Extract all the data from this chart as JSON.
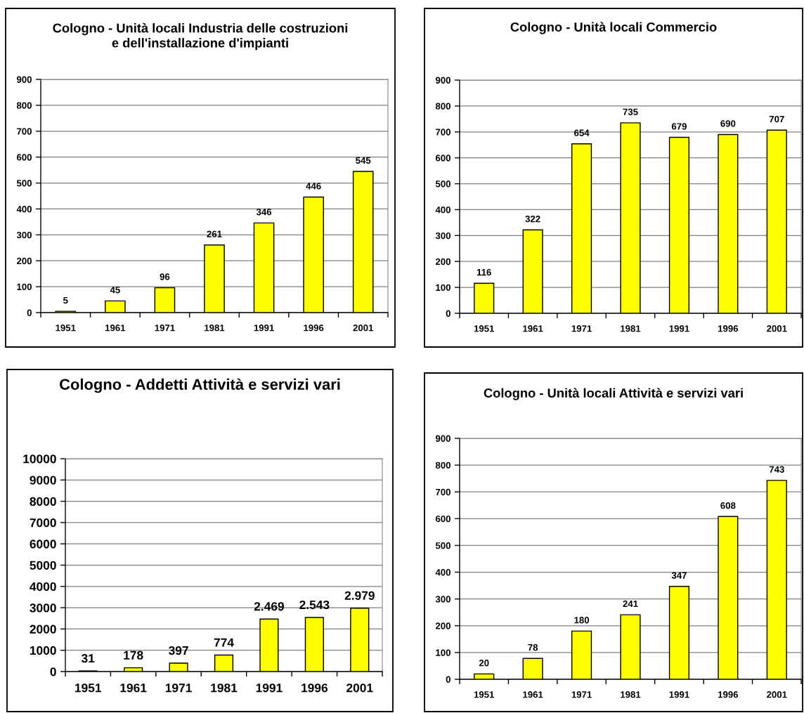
{
  "chart_data": [
    {
      "type": "bar",
      "title": "Cologno - Unità locali Industria delle costruzioni\ne dell'installazione d'impianti",
      "categories": [
        "1951",
        "1961",
        "1971",
        "1981",
        "1991",
        "1996",
        "2001"
      ],
      "values": [
        5,
        45,
        96,
        261,
        346,
        446,
        545
      ],
      "color": "#ffff00",
      "ylim": [
        0,
        900
      ],
      "yticks": [
        0,
        100,
        200,
        300,
        400,
        500,
        600,
        700,
        800,
        900
      ],
      "grid": "y",
      "data_labels": true
    },
    {
      "type": "bar",
      "title": "Cologno - Unità locali Commercio",
      "categories": [
        "1951",
        "1961",
        "1971",
        "1981",
        "1991",
        "1996",
        "2001"
      ],
      "values": [
        116,
        322,
        654,
        735,
        679,
        690,
        707
      ],
      "color": "#ffff00",
      "ylim": [
        0,
        900
      ],
      "yticks": [
        0,
        100,
        200,
        300,
        400,
        500,
        600,
        700,
        800,
        900
      ],
      "grid": "y",
      "data_labels": true
    },
    {
      "type": "bar",
      "title": "Cologno - Addetti Attività e servizi vari",
      "categories": [
        "1951",
        "1961",
        "1971",
        "1981",
        "1991",
        "1996",
        "2001"
      ],
      "values": [
        31,
        178,
        397,
        774,
        2469,
        2543,
        2979
      ],
      "value_labels": [
        "31",
        "178",
        "397",
        "774",
        "2.469",
        "2.543",
        "2.979"
      ],
      "color": "#ffff00",
      "ylim": [
        0,
        10000
      ],
      "yticks": [
        0,
        1000,
        2000,
        3000,
        4000,
        5000,
        6000,
        7000,
        8000,
        9000,
        10000
      ],
      "grid": "y"
    },
    {
      "type": "bar",
      "title": "Cologno - Unità locali Attività e servizi vari",
      "categories": [
        "1951",
        "1961",
        "1971",
        "1981",
        "1991",
        "1996",
        "2001"
      ],
      "values": [
        20,
        78,
        180,
        241,
        347,
        608,
        743
      ],
      "color": "#ffff00",
      "ylim": [
        0,
        900
      ],
      "yticks": [
        0,
        100,
        200,
        300,
        400,
        500,
        600,
        700,
        800,
        900
      ],
      "grid": "y",
      "data_labels": true
    }
  ]
}
